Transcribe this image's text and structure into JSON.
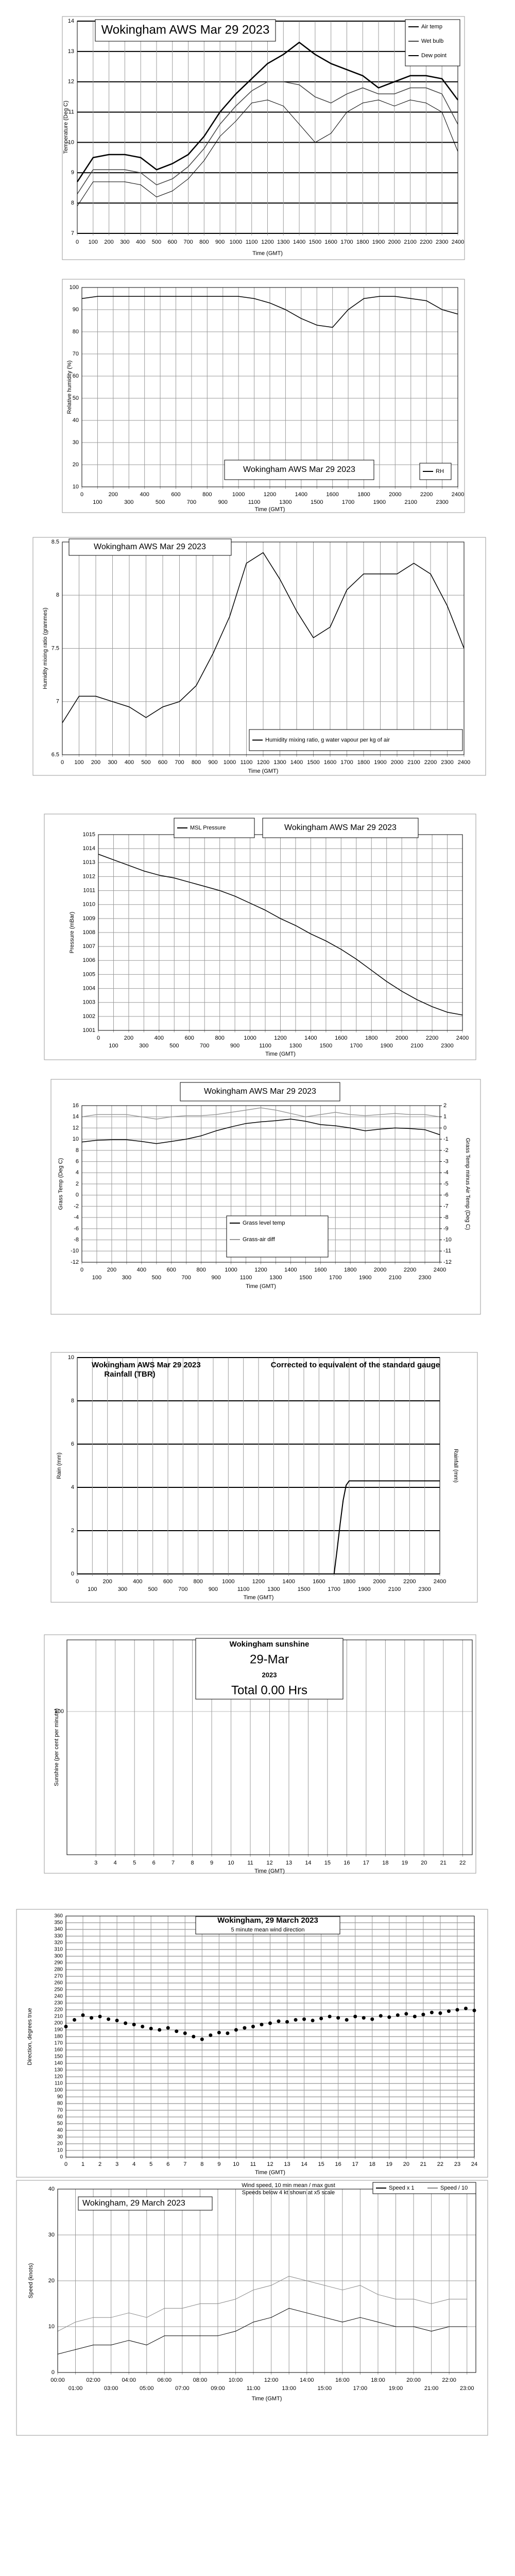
{
  "chart_data": [
    {
      "type": "line",
      "title": "Wokingham AWS Mar 29 2023",
      "xlabel": "Time (GMT)",
      "ylabel": "Temperature (Deg C)",
      "x": [
        0,
        100,
        200,
        300,
        400,
        500,
        600,
        700,
        800,
        900,
        1000,
        1100,
        1200,
        1300,
        1400,
        1500,
        1600,
        1700,
        1800,
        1900,
        2000,
        2100,
        2200,
        2300,
        2400
      ],
      "xlim": [
        0,
        2400
      ],
      "xticks": [
        0,
        100,
        200,
        300,
        400,
        500,
        600,
        700,
        800,
        900,
        1000,
        1100,
        1200,
        1300,
        1400,
        1500,
        1600,
        1700,
        1800,
        1900,
        2000,
        2100,
        2200,
        2300,
        2400
      ],
      "ylim": [
        7,
        14
      ],
      "yticks": [
        7,
        8,
        9,
        10,
        11,
        12,
        13,
        14
      ],
      "grid": true,
      "series": [
        {
          "name": "Air temp",
          "color": "#000000",
          "values": [
            8.7,
            9.5,
            9.6,
            9.6,
            9.5,
            9.1,
            9.3,
            9.6,
            10.2,
            11.0,
            11.6,
            12.1,
            12.6,
            12.9,
            13.3,
            12.9,
            12.6,
            12.4,
            12.2,
            11.8,
            12.0,
            12.2,
            12.2,
            12.1,
            11.4
          ]
        },
        {
          "name": "Wet bulb",
          "color": "#444444",
          "values": [
            8.3,
            9.1,
            9.1,
            9.1,
            9.0,
            8.6,
            8.8,
            9.2,
            9.8,
            10.6,
            11.2,
            11.7,
            12.0,
            12.0,
            11.9,
            11.5,
            11.3,
            11.6,
            11.8,
            11.6,
            11.6,
            11.8,
            11.8,
            11.6,
            10.6
          ]
        },
        {
          "name": "Dew point",
          "color": "#000000",
          "values": [
            7.9,
            8.7,
            8.7,
            8.7,
            8.6,
            8.2,
            8.4,
            8.8,
            9.4,
            10.2,
            10.7,
            11.3,
            11.4,
            11.2,
            10.6,
            10.0,
            10.3,
            11.0,
            11.3,
            11.4,
            11.2,
            11.4,
            11.3,
            11.0,
            9.7
          ]
        }
      ]
    },
    {
      "type": "line",
      "title": "Wokingham AWS Mar 29 2023",
      "xlabel": "Time (GMT)",
      "ylabel": "Relative humidity (%)",
      "x": [
        0,
        100,
        200,
        300,
        400,
        500,
        600,
        700,
        800,
        900,
        1000,
        1100,
        1200,
        1300,
        1400,
        1500,
        1600,
        1700,
        1800,
        1900,
        2000,
        2100,
        2200,
        2300,
        2400
      ],
      "xlim": [
        0,
        2400
      ],
      "xticks": [
        0,
        100,
        200,
        300,
        400,
        500,
        600,
        700,
        800,
        900,
        1000,
        1100,
        1200,
        1300,
        1400,
        1500,
        1600,
        1700,
        1800,
        1900,
        2000,
        2100,
        2200,
        2300,
        2400
      ],
      "ylim": [
        10,
        100
      ],
      "yticks": [
        10,
        20,
        30,
        40,
        50,
        60,
        70,
        80,
        90,
        100
      ],
      "grid": true,
      "series": [
        {
          "name": "RH",
          "color": "#000000",
          "values": [
            95,
            96,
            96,
            96,
            96,
            96,
            96,
            96,
            96,
            96,
            96,
            95,
            93,
            90,
            86,
            83,
            82,
            90,
            95,
            96,
            96,
            95,
            94,
            90,
            88
          ]
        }
      ]
    },
    {
      "type": "line",
      "title": "Wokingham AWS Mar 29 2023",
      "xlabel": "Time (GMT)",
      "ylabel": "Humidity mixing ratio (grammes)",
      "x": [
        0,
        100,
        200,
        300,
        400,
        500,
        600,
        700,
        800,
        900,
        1000,
        1100,
        1200,
        1300,
        1400,
        1500,
        1600,
        1700,
        1800,
        1900,
        2000,
        2100,
        2200,
        2300,
        2400
      ],
      "xlim": [
        0,
        2400
      ],
      "xticks": [
        0,
        100,
        200,
        300,
        400,
        500,
        600,
        700,
        800,
        900,
        1000,
        1100,
        1200,
        1300,
        1400,
        1500,
        1600,
        1700,
        1800,
        1900,
        2000,
        2100,
        2200,
        2300,
        2400
      ],
      "ylim": [
        6.5,
        8.5
      ],
      "yticks": [
        6.5,
        7,
        7.5,
        8,
        8.5
      ],
      "grid": true,
      "series": [
        {
          "name": "Humidity mixing ratio, g water vapour per kg of air",
          "color": "#000000",
          "values": [
            6.8,
            7.05,
            7.05,
            7.0,
            6.95,
            6.85,
            6.95,
            7.0,
            7.15,
            7.45,
            7.8,
            8.3,
            8.4,
            8.15,
            7.85,
            7.6,
            7.7,
            8.05,
            8.2,
            8.2,
            8.2,
            8.3,
            8.2,
            7.9,
            7.5
          ]
        }
      ]
    },
    {
      "type": "line",
      "title": "Wokingham AWS Mar 29 2023",
      "xlabel": "Time (GMT)",
      "ylabel": "Pressure (mBar)",
      "x": [
        0,
        100,
        200,
        300,
        400,
        500,
        600,
        700,
        800,
        900,
        1000,
        1100,
        1200,
        1300,
        1400,
        1500,
        1600,
        1700,
        1800,
        1900,
        2000,
        2100,
        2200,
        2300,
        2400
      ],
      "xlim": [
        0,
        2400
      ],
      "xticks": [
        0,
        100,
        200,
        300,
        400,
        500,
        600,
        700,
        800,
        900,
        1000,
        1100,
        1200,
        1300,
        1400,
        1500,
        1600,
        1700,
        1800,
        1900,
        2000,
        2100,
        2200,
        2300,
        2400
      ],
      "ylim": [
        1001,
        1015
      ],
      "yticks": [
        1001,
        1002,
        1003,
        1004,
        1005,
        1006,
        1007,
        1008,
        1009,
        1010,
        1011,
        1012,
        1013,
        1014,
        1015
      ],
      "grid": true,
      "series": [
        {
          "name": "MSL Pressure",
          "color": "#000000",
          "values": [
            1013.6,
            1013.2,
            1012.8,
            1012.4,
            1012.1,
            1011.9,
            1011.6,
            1011.3,
            1011.0,
            1010.6,
            1010.1,
            1009.6,
            1009.0,
            1008.5,
            1007.9,
            1007.4,
            1006.8,
            1006.1,
            1005.3,
            1004.5,
            1003.8,
            1003.2,
            1002.7,
            1002.3,
            1002.1
          ]
        }
      ]
    },
    {
      "type": "line",
      "title": "Wokingham AWS Mar 29 2023",
      "xlabel": "Time (GMT)",
      "ylabel": "Grass Temp (Deg C)",
      "y2label": "Grass Temp minus Air Temp (Deg C)",
      "x": [
        0,
        100,
        200,
        300,
        400,
        500,
        600,
        700,
        800,
        900,
        1000,
        1100,
        1200,
        1300,
        1400,
        1500,
        1600,
        1700,
        1800,
        1900,
        2000,
        2100,
        2200,
        2300,
        2400
      ],
      "xlim": [
        0,
        2400
      ],
      "xticks": [
        0,
        100,
        200,
        300,
        400,
        500,
        600,
        700,
        800,
        900,
        1000,
        1100,
        1200,
        1300,
        1400,
        1500,
        1600,
        1700,
        1800,
        1900,
        2000,
        2100,
        2200,
        2300,
        2400
      ],
      "ylim": [
        -12,
        16
      ],
      "yticks": [
        -12,
        -10,
        -8,
        -6,
        -4,
        -2,
        0,
        2,
        4,
        6,
        8,
        10,
        12,
        14,
        16
      ],
      "y2lim": [
        -12,
        2
      ],
      "y2ticks": [
        -12,
        -11,
        -10,
        -9,
        -8,
        -7,
        -6,
        -5,
        -4,
        -3,
        -2,
        -1,
        0,
        1,
        2
      ],
      "grid": true,
      "series": [
        {
          "name": "Grass level temp",
          "color": "#000000",
          "values": [
            9.5,
            9.8,
            9.9,
            9.9,
            9.6,
            9.2,
            9.6,
            10.0,
            10.6,
            11.5,
            12.2,
            12.8,
            13.1,
            13.3,
            13.6,
            13.2,
            12.6,
            12.4,
            12.0,
            11.5,
            11.8,
            12.0,
            11.9,
            11.7,
            10.8
          ]
        },
        {
          "name": "Grass-air diff",
          "color": "#999999",
          "axis": "y2",
          "values": [
            1.0,
            1.2,
            1.2,
            1.2,
            1.0,
            0.8,
            1.0,
            1.1,
            1.1,
            1.2,
            1.4,
            1.6,
            1.8,
            1.6,
            1.3,
            1.0,
            1.2,
            1.4,
            1.2,
            1.1,
            1.2,
            1.3,
            1.2,
            1.2,
            1.0
          ]
        }
      ]
    },
    {
      "type": "line",
      "title": "Wokingham AWS Mar 29 2023",
      "subtitle": "Rainfall (TBR)",
      "annotation": "Corrected to equivalent of the standard gauge",
      "xlabel": "Time (GMT)",
      "ylabel": "Rain (mm)",
      "y2label": "Rainfall (mm)",
      "x": [
        1700,
        1720,
        1740,
        1760,
        1780,
        1800,
        1900,
        2000,
        2100,
        2200,
        2300,
        2400
      ],
      "xlim": [
        0,
        2400
      ],
      "xticks": [
        0,
        100,
        200,
        300,
        400,
        500,
        600,
        700,
        800,
        900,
        1000,
        1100,
        1200,
        1300,
        1400,
        1500,
        1600,
        1700,
        1800,
        1900,
        2000,
        2100,
        2200,
        2300,
        2400
      ],
      "ylim": [
        0,
        10
      ],
      "yticks": [
        0,
        2,
        4,
        6,
        8,
        10
      ],
      "grid": true,
      "series": [
        {
          "color": "#000000",
          "values": [
            0,
            1.1,
            2.3,
            3.4,
            4.1,
            4.3,
            4.3,
            4.3,
            4.3,
            4.3,
            4.3,
            4.3
          ]
        }
      ]
    },
    {
      "type": "line",
      "title": "Wokingham sunshine",
      "date": "29-Mar",
      "year": "2023",
      "total": "Total 0.00 Hrs",
      "xlabel": "Time (GMT)",
      "ylabel": "Sunshine (per cent per minute)",
      "xlim": [
        1.5,
        22.5
      ],
      "xticks": [
        3,
        4,
        5,
        6,
        7,
        8,
        9,
        10,
        11,
        12,
        13,
        14,
        15,
        16,
        17,
        18,
        19,
        20,
        21,
        22
      ],
      "ylim": [
        0,
        150
      ],
      "yticks": [
        100
      ],
      "grid": true
    },
    {
      "type": "scatter",
      "title": "Wokingham,  29 March 2023",
      "subtitle": "5 minute mean wind direction",
      "xlabel": "Time (GMT)",
      "ylabel": "Direction, degrees true",
      "x": [
        0,
        0.5,
        1,
        1.5,
        2,
        2.5,
        3,
        3.5,
        4,
        4.5,
        5,
        5.5,
        6,
        6.5,
        7,
        7.5,
        8,
        8.5,
        9,
        9.5,
        10,
        10.5,
        11,
        11.5,
        12,
        12.5,
        13,
        13.5,
        14,
        14.5,
        15,
        15.5,
        16,
        16.5,
        17,
        17.5,
        18,
        18.5,
        19,
        19.5,
        20,
        20.5,
        21,
        21.5,
        22,
        22.5,
        23,
        23.5,
        24
      ],
      "xlim": [
        0,
        24
      ],
      "xticks": [
        0,
        1,
        2,
        3,
        4,
        5,
        6,
        7,
        8,
        9,
        10,
        11,
        12,
        13,
        14,
        15,
        16,
        17,
        18,
        19,
        20,
        21,
        22,
        23,
        24
      ],
      "ylim": [
        0,
        360
      ],
      "yticks": [
        0,
        10,
        20,
        30,
        40,
        50,
        60,
        70,
        80,
        90,
        100,
        110,
        120,
        130,
        140,
        150,
        160,
        170,
        180,
        190,
        200,
        210,
        220,
        230,
        240,
        250,
        260,
        270,
        280,
        290,
        300,
        310,
        320,
        330,
        340,
        350,
        360
      ],
      "grid": true,
      "series": [
        {
          "color": "#000000",
          "values": [
            195,
            205,
            212,
            208,
            210,
            206,
            204,
            200,
            198,
            195,
            192,
            190,
            193,
            188,
            185,
            180,
            176,
            182,
            186,
            185,
            190,
            193,
            195,
            198,
            200,
            203,
            202,
            205,
            206,
            204,
            207,
            210,
            208,
            205,
            210,
            208,
            206,
            211,
            209,
            212,
            214,
            210,
            213,
            216,
            215,
            218,
            220,
            222,
            219
          ]
        }
      ]
    },
    {
      "type": "line",
      "title": "Wokingham,  29 March 2023",
      "subtitle": "Wind speed, 10 min mean / max gust",
      "subtitle2": "Speeds below 4 kt shown at x5 scale",
      "xlabel": "Time (GMT)",
      "ylabel": "Speed (knots)",
      "x": [
        0,
        1,
        2,
        3,
        4,
        5,
        6,
        7,
        8,
        9,
        10,
        11,
        12,
        13,
        14,
        15,
        16,
        17,
        18,
        19,
        20,
        21,
        22,
        23
      ],
      "xlim": [
        0,
        23.5
      ],
      "xticks": [
        {
          "value": 0,
          "label": "00:00"
        },
        {
          "value": 1,
          "label": "01:00"
        },
        {
          "value": 2,
          "label": "02:00"
        },
        {
          "value": 3,
          "label": "03:00"
        },
        {
          "value": 4,
          "label": "04:00"
        },
        {
          "value": 5,
          "label": "05:00"
        },
        {
          "value": 6,
          "label": "06:00"
        },
        {
          "value": 7,
          "label": "07:00"
        },
        {
          "value": 8,
          "label": "08:00"
        },
        {
          "value": 9,
          "label": "09:00"
        },
        {
          "value": 10,
          "label": "10:00"
        },
        {
          "value": 11,
          "label": "11:00"
        },
        {
          "value": 12,
          "label": "12:00"
        },
        {
          "value": 13,
          "label": "13:00"
        },
        {
          "value": 14,
          "label": "14:00"
        },
        {
          "value": 15,
          "label": "15:00"
        },
        {
          "value": 16,
          "label": "16:00"
        },
        {
          "value": 17,
          "label": "17:00"
        },
        {
          "value": 18,
          "label": "18:00"
        },
        {
          "value": 19,
          "label": "19:00"
        },
        {
          "value": 20,
          "label": "20:00"
        },
        {
          "value": 21,
          "label": "21:00"
        },
        {
          "value": 22,
          "label": "22:00"
        },
        {
          "value": 23,
          "label": "23:00"
        }
      ],
      "ylim": [
        0,
        40
      ],
      "yticks": [
        0,
        10,
        20,
        30,
        40
      ],
      "grid": true,
      "series": [
        {
          "name": "Speed x 1",
          "color": "#000000",
          "values": [
            4,
            5,
            6,
            6,
            7,
            6,
            8,
            8,
            8,
            8,
            9,
            11,
            12,
            14,
            13,
            12,
            11,
            12,
            11,
            10,
            10,
            9,
            10,
            10
          ]
        },
        {
          "name": "Speed / 10",
          "color": "#888888",
          "values": [
            9,
            11,
            12,
            12,
            13,
            12,
            14,
            14,
            15,
            15,
            16,
            18,
            19,
            21,
            20,
            19,
            18,
            19,
            17,
            16,
            16,
            15,
            16,
            16
          ]
        }
      ]
    }
  ]
}
